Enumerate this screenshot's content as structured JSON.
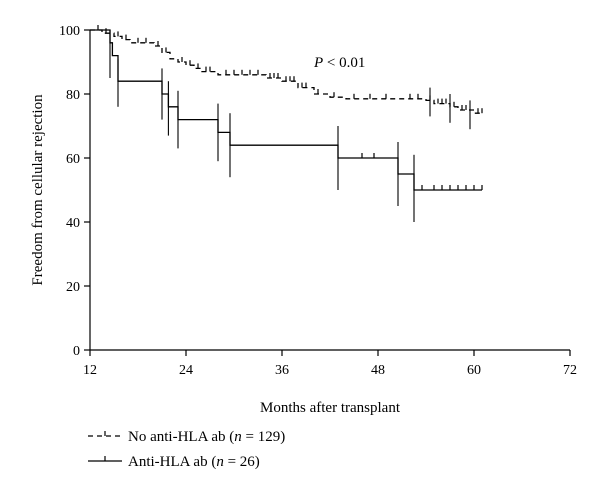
{
  "chart_data": {
    "type": "line",
    "subtype": "kaplan-meier",
    "title": "",
    "xlabel": "Months after transplant",
    "ylabel": "Freedom from cellular rejection",
    "xlim": [
      12,
      72
    ],
    "ylim": [
      0,
      100
    ],
    "xticks": [
      12,
      24,
      36,
      48,
      60,
      72
    ],
    "yticks": [
      0,
      20,
      40,
      60,
      80,
      100
    ],
    "grid": false,
    "annotation": {
      "text_italic": "P",
      "text_rest": " < 0.01",
      "x": 40,
      "y": 90
    },
    "series": [
      {
        "name_prefix": "No anti-HLA ab (",
        "name_n": "n",
        "name_suffix": " = 129)",
        "style": "dashed",
        "color": "#000000",
        "steps": [
          [
            12,
            100
          ],
          [
            13.5,
            99
          ],
          [
            15,
            98
          ],
          [
            16,
            97
          ],
          [
            17,
            96
          ],
          [
            20,
            95
          ],
          [
            21,
            93
          ],
          [
            22,
            91
          ],
          [
            23,
            90
          ],
          [
            24,
            89
          ],
          [
            25,
            88
          ],
          [
            26,
            87
          ],
          [
            28,
            86
          ],
          [
            34,
            85
          ],
          [
            36,
            84
          ],
          [
            38,
            82
          ],
          [
            40,
            80
          ],
          [
            42,
            79
          ],
          [
            44,
            78.5
          ],
          [
            54,
            78
          ],
          [
            55,
            77
          ],
          [
            57,
            76
          ],
          [
            58,
            75
          ],
          [
            60,
            74
          ],
          [
            61,
            74
          ]
        ],
        "censored": [
          13,
          14,
          15.5,
          16.5,
          18,
          19,
          20.5,
          21.5,
          23.5,
          24.5,
          25.5,
          26.5,
          27,
          29,
          30,
          31,
          32,
          33,
          34.5,
          35,
          35.5,
          36.5,
          37,
          37.5,
          38.5,
          39,
          40.5,
          42.5,
          45,
          47,
          49,
          52,
          53,
          54.5,
          55.5,
          56,
          56.5,
          57.5,
          58.5,
          59,
          60.5,
          61
        ]
      },
      {
        "name_prefix": "Anti-HLA ab (",
        "name_n": "n",
        "name_suffix": " = 26)",
        "style": "solid",
        "color": "#000000",
        "steps": [
          [
            12,
            100
          ],
          [
            14.5,
            96
          ],
          [
            14.8,
            92
          ],
          [
            15.5,
            84
          ],
          [
            21,
            80
          ],
          [
            21.8,
            76
          ],
          [
            23,
            72
          ],
          [
            28,
            68
          ],
          [
            29.5,
            64
          ],
          [
            43,
            60
          ],
          [
            49,
            60
          ],
          [
            50.5,
            55
          ],
          [
            52.5,
            50
          ],
          [
            61,
            50
          ]
        ],
        "censored": [
          46,
          47.5,
          53.5,
          55,
          56,
          57,
          58,
          59,
          60,
          61
        ]
      }
    ],
    "error_bars": [
      {
        "x": 14.5,
        "lo": 85,
        "hi": 100
      },
      {
        "x": 15.5,
        "lo": 76,
        "hi": 91
      },
      {
        "x": 21,
        "lo": 72,
        "hi": 88
      },
      {
        "x": 21.8,
        "lo": 67,
        "hi": 84
      },
      {
        "x": 23,
        "lo": 63,
        "hi": 81
      },
      {
        "x": 28,
        "lo": 59,
        "hi": 77
      },
      {
        "x": 29.5,
        "lo": 54,
        "hi": 74
      },
      {
        "x": 43,
        "lo": 50,
        "hi": 70
      },
      {
        "x": 50.5,
        "lo": 45,
        "hi": 65
      },
      {
        "x": 52.5,
        "lo": 40,
        "hi": 61
      },
      {
        "x": 54.5,
        "lo": 73,
        "hi": 82
      },
      {
        "x": 57,
        "lo": 71,
        "hi": 80
      },
      {
        "x": 59.5,
        "lo": 69,
        "hi": 78
      }
    ]
  }
}
